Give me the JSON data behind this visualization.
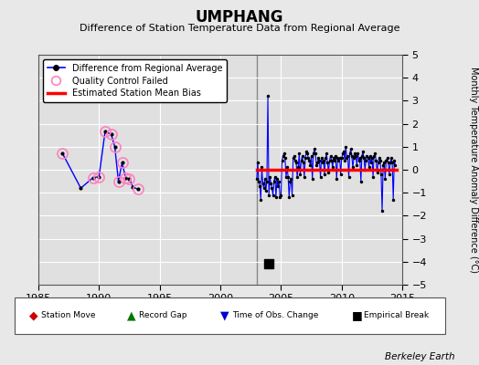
{
  "title": "UMPHANG",
  "subtitle": "Difference of Station Temperature Data from Regional Average",
  "ylabel": "Monthly Temperature Anomaly Difference (°C)",
  "xlim": [
    1985,
    2015
  ],
  "ylim": [
    -5,
    5
  ],
  "yticks": [
    -5,
    -4,
    -3,
    -2,
    -1,
    0,
    1,
    2,
    3,
    4,
    5
  ],
  "xticks": [
    1985,
    1990,
    1995,
    2000,
    2005,
    2010,
    2015
  ],
  "background_color": "#e8e8e8",
  "plot_background": "#e0e0e0",
  "grid_color": "#ffffff",
  "line_color": "#0000ff",
  "marker_color": "#000000",
  "qc_color": "#ff80c0",
  "bias_color": "#ff0000",
  "vertical_line_color": "#888888",
  "vertical_line_x": 2003.0,
  "empirical_break_x": 2004.0,
  "empirical_break_y": -4.1,
  "bias_x_start": 2003.0,
  "bias_x_end": 2014.5,
  "bias_y": 0.0,
  "early_x": [
    1987.0,
    1988.5,
    1989.5,
    1990.0,
    1990.5,
    1991.0,
    1991.3,
    1991.6,
    1991.9,
    1992.2,
    1992.5,
    1992.8,
    1993.2
  ],
  "early_y": [
    0.7,
    -0.8,
    -0.35,
    -0.3,
    1.65,
    1.55,
    1.0,
    -0.5,
    0.3,
    -0.35,
    -0.4,
    -0.75,
    -0.85
  ],
  "early_qc": [
    true,
    false,
    true,
    true,
    true,
    true,
    true,
    true,
    true,
    true,
    true,
    false,
    true
  ],
  "main_x": [
    2003.0,
    2003.083,
    2003.167,
    2003.25,
    2003.333,
    2003.417,
    2003.5,
    2003.583,
    2003.667,
    2003.75,
    2003.833,
    2003.917,
    2004.0,
    2004.083,
    2004.167,
    2004.25,
    2004.333,
    2004.417,
    2004.5,
    2004.583,
    2004.667,
    2004.75,
    2004.833,
    2004.917,
    2005.0,
    2005.083,
    2005.167,
    2005.25,
    2005.333,
    2005.417,
    2005.5,
    2005.583,
    2005.667,
    2005.75,
    2005.833,
    2005.917,
    2006.0,
    2006.083,
    2006.167,
    2006.25,
    2006.333,
    2006.417,
    2006.5,
    2006.583,
    2006.667,
    2006.75,
    2006.833,
    2006.917,
    2007.0,
    2007.083,
    2007.167,
    2007.25,
    2007.333,
    2007.417,
    2007.5,
    2007.583,
    2007.667,
    2007.75,
    2007.833,
    2007.917,
    2008.0,
    2008.083,
    2008.167,
    2008.25,
    2008.333,
    2008.417,
    2008.5,
    2008.583,
    2008.667,
    2008.75,
    2008.833,
    2008.917,
    2009.0,
    2009.083,
    2009.167,
    2009.25,
    2009.333,
    2009.417,
    2009.5,
    2009.583,
    2009.667,
    2009.75,
    2009.833,
    2009.917,
    2010.0,
    2010.083,
    2010.167,
    2010.25,
    2010.333,
    2010.417,
    2010.5,
    2010.583,
    2010.667,
    2010.75,
    2010.833,
    2010.917,
    2011.0,
    2011.083,
    2011.167,
    2011.25,
    2011.333,
    2011.417,
    2011.5,
    2011.583,
    2011.667,
    2011.75,
    2011.833,
    2011.917,
    2012.0,
    2012.083,
    2012.167,
    2012.25,
    2012.333,
    2012.417,
    2012.5,
    2012.583,
    2012.667,
    2012.75,
    2012.833,
    2012.917,
    2013.0,
    2013.083,
    2013.167,
    2013.25,
    2013.333,
    2013.417,
    2013.5,
    2013.583,
    2013.667,
    2013.75,
    2013.833,
    2013.917,
    2014.0,
    2014.083,
    2014.167,
    2014.25,
    2014.333,
    2014.417
  ],
  "main_y": [
    -0.4,
    0.3,
    -0.5,
    -0.7,
    -1.3,
    0.1,
    -0.6,
    -0.8,
    -0.4,
    -0.9,
    -0.5,
    3.2,
    -1.1,
    -0.3,
    -0.6,
    -0.8,
    -1.1,
    -0.5,
    -0.3,
    -1.2,
    -0.4,
    -0.7,
    -0.5,
    -1.2,
    -1.1,
    0.4,
    0.6,
    0.7,
    0.5,
    -0.3,
    0.1,
    -0.3,
    -1.2,
    -0.5,
    -0.4,
    -1.1,
    0.5,
    0.6,
    0.4,
    0.3,
    -0.3,
    0.1,
    0.7,
    -0.2,
    0.4,
    0.6,
    0.3,
    -0.3,
    0.5,
    0.8,
    0.7,
    0.5,
    0.4,
    0.2,
    0.6,
    -0.4,
    0.7,
    0.9,
    0.7,
    0.2,
    0.3,
    0.5,
    0.4,
    -0.3,
    0.5,
    0.3,
    0.4,
    -0.2,
    0.5,
    0.7,
    0.3,
    -0.1,
    0.4,
    0.6,
    0.4,
    0.1,
    0.5,
    0.4,
    0.6,
    -0.4,
    0.5,
    0.4,
    0.5,
    -0.2,
    0.5,
    0.7,
    0.8,
    0.4,
    1.0,
    0.5,
    0.6,
    -0.3,
    0.7,
    0.9,
    0.6,
    0.1,
    0.5,
    0.7,
    0.6,
    0.2,
    0.7,
    0.4,
    0.5,
    -0.5,
    0.6,
    0.8,
    0.5,
    0.0,
    0.4,
    0.6,
    0.5,
    0.1,
    0.6,
    0.3,
    0.5,
    -0.3,
    0.6,
    0.7,
    0.4,
    -0.1,
    0.3,
    0.5,
    0.4,
    -0.2,
    -1.8,
    0.2,
    0.3,
    -0.4,
    0.4,
    0.5,
    0.3,
    -0.2,
    0.3,
    0.5,
    0.3,
    -1.3,
    0.4,
    0.2
  ],
  "footer_text": "Berkeley Earth"
}
